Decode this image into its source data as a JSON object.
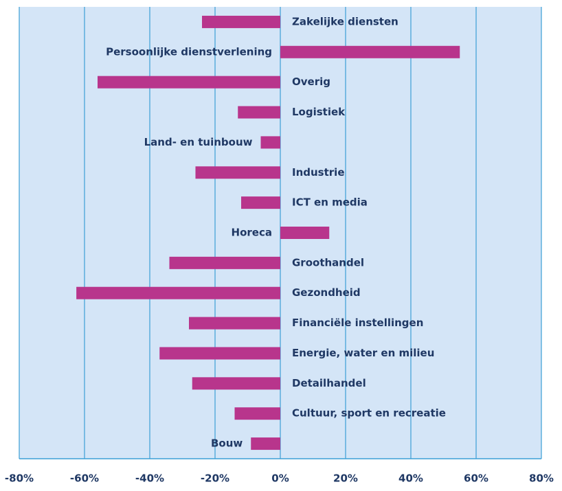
{
  "chart_data": {
    "type": "bar",
    "orientation": "horizontal",
    "categories": [
      "Zakelijke diensten",
      "Persoonlijke dienstverlening",
      "Overig",
      "Logistiek",
      "Land- en tuinbouw",
      "Industrie",
      "ICT en media",
      "Horeca",
      "Groothandel",
      "Gezondheid",
      "Financiële instellingen",
      "Energie, water en milieu",
      "Detailhandel",
      "Cultuur, sport en recreatie",
      "Bouw"
    ],
    "values": [
      -24,
      55,
      -56,
      -13,
      -6,
      -26,
      -12,
      15,
      -34,
      -62.5,
      -28,
      -37,
      -27,
      -14,
      -9
    ],
    "color": "#b8358c",
    "xlim": [
      -80,
      80
    ],
    "xticks": [
      {
        "value": -80,
        "label": "-80%"
      },
      {
        "value": -60,
        "label": "-60%"
      },
      {
        "value": -40,
        "label": "-40%"
      },
      {
        "value": -20,
        "label": "-20%"
      },
      {
        "value": 0,
        "label": "0%"
      },
      {
        "value": 20,
        "label": "20%"
      },
      {
        "value": 40,
        "label": "40%"
      },
      {
        "value": 60,
        "label": "60%"
      },
      {
        "value": 80,
        "label": "80%"
      }
    ],
    "grid": true
  }
}
